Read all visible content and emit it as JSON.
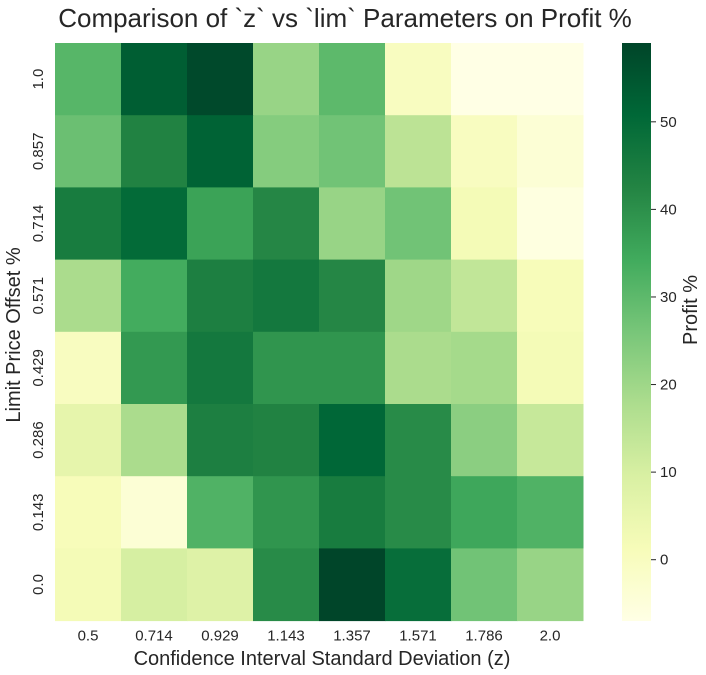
{
  "chart_data": {
    "type": "heatmap",
    "title": "Comparison of `z` vs `lim` Parameters on Profit %",
    "xlabel": "Confidence Interval Standard Deviation (z)",
    "ylabel": "Limit Price Offset %",
    "x_ticks": [
      "0.5",
      "0.714",
      "0.929",
      "1.143",
      "1.357",
      "1.571",
      "1.786",
      "2.0"
    ],
    "y_ticks": [
      "1.0",
      "0.857",
      "0.714",
      "0.571",
      "0.429",
      "0.286",
      "0.143",
      "0.0"
    ],
    "values": [
      [
        31,
        53,
        58,
        21,
        30,
        0,
        -7,
        -7
      ],
      [
        28,
        43,
        52,
        24,
        27,
        15,
        0,
        -4
      ],
      [
        45,
        50,
        36,
        42,
        21,
        27,
        2,
        -6
      ],
      [
        18,
        34,
        44,
        46,
        42,
        20,
        14,
        1
      ],
      [
        0,
        38,
        46,
        39,
        39,
        18,
        19,
        2
      ],
      [
        6,
        18,
        44,
        43,
        51,
        41,
        23,
        13
      ],
      [
        1,
        -4,
        32,
        39,
        45,
        41,
        35,
        32
      ],
      [
        2,
        10,
        8,
        41,
        59,
        49,
        27,
        21
      ]
    ],
    "colorbar": {
      "label": "Profit %",
      "range": [
        -7,
        59
      ],
      "ticks": [
        "0",
        "10",
        "20",
        "30",
        "40",
        "50"
      ],
      "colormap": "YlGn"
    }
  }
}
